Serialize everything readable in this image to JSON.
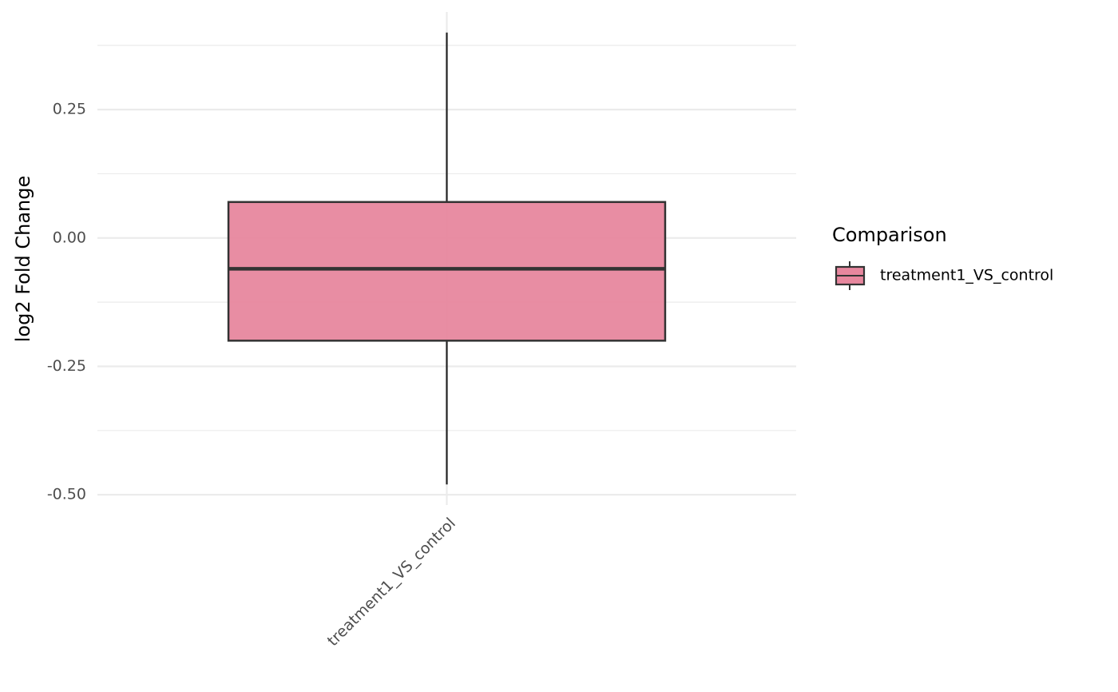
{
  "chart_data": {
    "type": "box",
    "y_label": "log2 Fold Change",
    "categories": [
      "treatment1_VS_control"
    ],
    "series": [
      {
        "name": "treatment1_VS_control",
        "color": "#e7879e",
        "min": [
          -0.48
        ],
        "q1": [
          -0.2
        ],
        "median": [
          -0.06
        ],
        "q3": [
          0.07
        ],
        "max": [
          0.4
        ]
      }
    ],
    "legend_title": "Comparison",
    "legend_position": "right",
    "ylim": [
      -0.52,
      0.44
    ],
    "yticks": [
      {
        "value": -0.5,
        "label": "-0.50"
      },
      -0.25,
      {
        "value": 0,
        "label": "0.00"
      },
      0.25
    ],
    "minor_yticks": [
      -0.375,
      -0.125,
      0.125,
      0.375
    ],
    "grid": true
  }
}
